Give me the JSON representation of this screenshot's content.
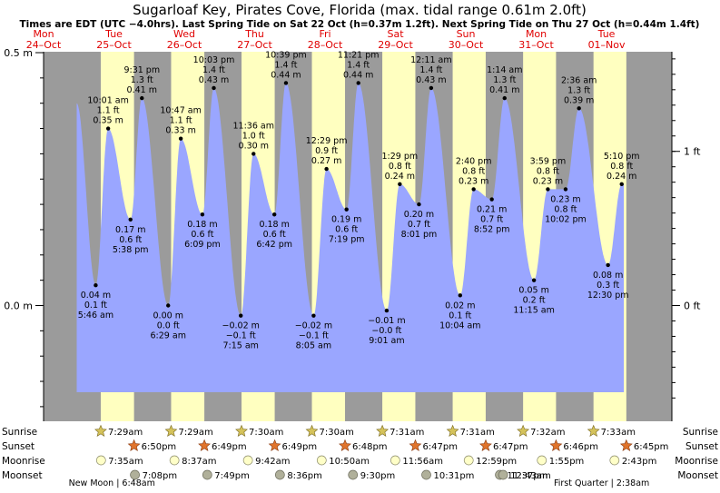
{
  "title": "Sugarloaf Key, Pirates Cove, Florida (max. tidal range 0.61m 2.0ft)",
  "subtitle": "Times are EDT (UTC −4.0hrs). Last Spring Tide on Sat 22 Oct (h=0.37m 1.2ft). Next Spring Tide on Thu 27 Oct (h=0.44m 1.4ft)",
  "colors": {
    "night": "#9b9b9b",
    "day": "#ffffc0",
    "water": "#9aa6ff",
    "date_red": "#e00000",
    "sunrise_star": "#d4c25a",
    "sunset_star": "#e0742c",
    "moonrise": "#ffffc8",
    "moonset": "#b0b09a"
  },
  "days": [
    {
      "dow": "Mon",
      "date": "24–Oct"
    },
    {
      "dow": "Tue",
      "date": "25–Oct"
    },
    {
      "dow": "Wed",
      "date": "26–Oct"
    },
    {
      "dow": "Thu",
      "date": "27–Oct"
    },
    {
      "dow": "Fri",
      "date": "28–Oct"
    },
    {
      "dow": "Sat",
      "date": "29–Oct"
    },
    {
      "dow": "Sun",
      "date": "30–Oct"
    },
    {
      "dow": "Mon",
      "date": "31–Oct"
    },
    {
      "dow": "Tue",
      "date": "01–Nov"
    }
  ],
  "chart_data": {
    "type": "area",
    "title": "Sugarloaf Key, Pirates Cove, Florida (max. tidal range 0.61m 2.0ft)",
    "x_unit": "days since chart start (Mon 24-Oct 12:00 = 0.5)",
    "y_left_unit": "m",
    "y_right_unit": "ft",
    "ylim_m": [
      -0.2,
      0.5
    ],
    "left_ticks": [
      {
        "v": 0.5,
        "label": "0.5 m"
      },
      {
        "v": 0.0,
        "label": "0.0 m"
      }
    ],
    "right_ticks": [
      {
        "v": 0.3048,
        "label": "1 ft"
      },
      {
        "v": 0.0,
        "label": "0 ft"
      }
    ],
    "tides": [
      {
        "type": "low",
        "m": "0.04 m",
        "ft": "0.1 ft",
        "time": "5:46 am"
      },
      {
        "type": "high",
        "m": "0.35 m",
        "ft": "1.1 ft",
        "time": "10:01 am"
      },
      {
        "type": "low",
        "m": "0.17 m",
        "ft": "0.6 ft",
        "time": "5:38 pm"
      },
      {
        "type": "high",
        "m": "0.41 m",
        "ft": "1.3 ft",
        "time": "9:31 pm"
      },
      {
        "type": "low",
        "m": "0.00 m",
        "ft": "0.0 ft",
        "time": "6:29 am"
      },
      {
        "type": "high",
        "m": "0.33 m",
        "ft": "1.1 ft",
        "time": "10:47 am"
      },
      {
        "type": "low",
        "m": "0.18 m",
        "ft": "0.6 ft",
        "time": "6:09 pm"
      },
      {
        "type": "high",
        "m": "0.43 m",
        "ft": "1.4 ft",
        "time": "10:03 pm"
      },
      {
        "type": "low",
        "m": "−0.02 m",
        "ft": "−0.1 ft",
        "time": "7:15 am"
      },
      {
        "type": "high",
        "m": "0.30 m",
        "ft": "1.0 ft",
        "time": "11:36 am"
      },
      {
        "type": "low",
        "m": "0.18 m",
        "ft": "0.6 ft",
        "time": "6:42 pm"
      },
      {
        "type": "high",
        "m": "0.44 m",
        "ft": "1.4 ft",
        "time": "10:39 pm"
      },
      {
        "type": "low",
        "m": "−0.02 m",
        "ft": "−0.1 ft",
        "time": "8:05 am"
      },
      {
        "type": "high",
        "m": "0.27 m",
        "ft": "0.9 ft",
        "time": "12:29 pm"
      },
      {
        "type": "low",
        "m": "0.19 m",
        "ft": "0.6 ft",
        "time": "7:19 pm"
      },
      {
        "type": "high",
        "m": "0.44 m",
        "ft": "1.4 ft",
        "time": "11:21 pm"
      },
      {
        "type": "low",
        "m": "−0.01 m",
        "ft": "−0.0 ft",
        "time": "9:01 am"
      },
      {
        "type": "high",
        "m": "0.24 m",
        "ft": "0.8 ft",
        "time": "1:29 pm"
      },
      {
        "type": "low",
        "m": "0.20 m",
        "ft": "0.7 ft",
        "time": "8:01 pm"
      },
      {
        "type": "high",
        "m": "0.43 m",
        "ft": "1.4 ft",
        "time": "12:11 am"
      },
      {
        "type": "low",
        "m": "0.02 m",
        "ft": "0.1 ft",
        "time": "10:04 am"
      },
      {
        "type": "high",
        "m": "0.23 m",
        "ft": "0.8 ft",
        "time": "2:40 pm"
      },
      {
        "type": "low",
        "m": "0.21 m",
        "ft": "0.7 ft",
        "time": "8:52 pm"
      },
      {
        "type": "high",
        "m": "0.41 m",
        "ft": "1.3 ft",
        "time": "1:14 am"
      },
      {
        "type": "low",
        "m": "0.05 m",
        "ft": "0.2 ft",
        "time": "11:15 am"
      },
      {
        "type": "high",
        "m": "0.23 m",
        "ft": "0.8 ft",
        "time": "3:59 pm"
      },
      {
        "type": "low",
        "m": "0.23 m",
        "ft": "0.8 ft",
        "time": "10:02 pm"
      },
      {
        "type": "high",
        "m": "0.39 m",
        "ft": "1.3 ft",
        "time": "2:36 am"
      },
      {
        "type": "low",
        "m": "0.08 m",
        "ft": "0.3 ft",
        "time": "12:30 pm"
      },
      {
        "type": "high",
        "m": "0.24 m",
        "ft": "0.8 ft",
        "time": "5:10 pm"
      }
    ],
    "sunrise": [
      "7:29am",
      "7:29am",
      "7:30am",
      "7:30am",
      "7:31am",
      "7:31am",
      "7:32am",
      "7:33am"
    ],
    "sunset": [
      "6:50pm",
      "6:49pm",
      "6:49pm",
      "6:48pm",
      "6:47pm",
      "6:47pm",
      "6:46pm",
      "6:45pm"
    ],
    "moonrise": [
      "7:35am",
      "8:37am",
      "9:42am",
      "10:50am",
      "11:56am",
      "12:59pm",
      "1:55pm",
      "2:43pm"
    ],
    "moonset": [
      "7:08pm",
      "7:49pm",
      "8:36pm",
      "9:30pm",
      "10:31pm",
      "11:37pm",
      "12:43am"
    ],
    "moon_phases": [
      {
        "label": "New Moon",
        "time": "6:48am"
      },
      {
        "label": "First Quarter",
        "time": "2:38am"
      }
    ]
  },
  "legend": {
    "sunrise": "Sunrise",
    "sunset": "Sunset",
    "moonrise": "Moonrise",
    "moonset": "Moonset"
  }
}
